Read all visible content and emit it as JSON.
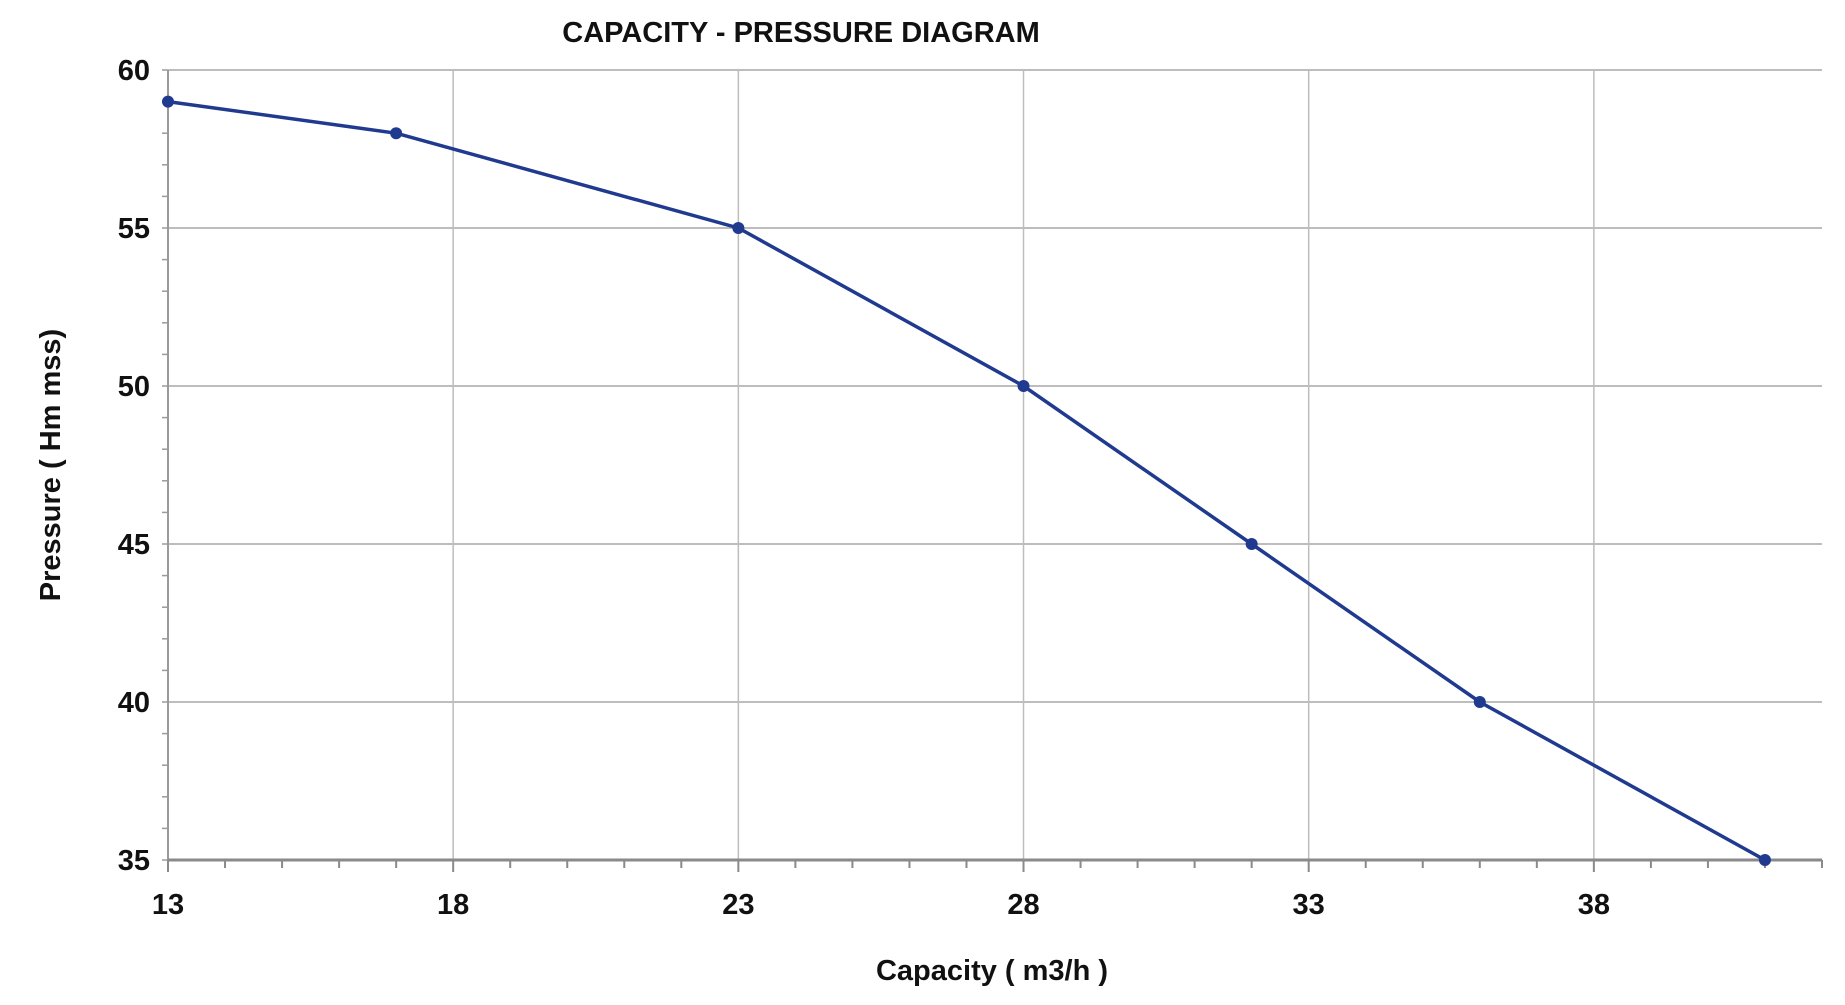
{
  "chart_data": {
    "type": "line",
    "title": "CAPACITY - PRESSURE DIAGRAM",
    "xlabel": "Capacity ( m3/h )",
    "ylabel": "Pressure ( Hm mss)",
    "xlim": [
      13,
      42
    ],
    "ylim": [
      35,
      60
    ],
    "x_ticks": [
      13,
      18,
      23,
      28,
      33,
      38
    ],
    "x_tick_labels": [
      "13",
      "18",
      "23",
      "28",
      "33",
      "38"
    ],
    "y_ticks": [
      35,
      40,
      45,
      50,
      55,
      60
    ],
    "y_tick_labels": [
      "35",
      "40",
      "45",
      "50",
      "55",
      "60"
    ],
    "x_minor_step": 1,
    "grid": true,
    "series": [
      {
        "name": "Pressure",
        "color": "#1f3a8f",
        "x": [
          13,
          17,
          23,
          28,
          32,
          36,
          41
        ],
        "y": [
          59,
          58,
          55,
          50,
          45,
          40,
          35
        ]
      }
    ]
  }
}
